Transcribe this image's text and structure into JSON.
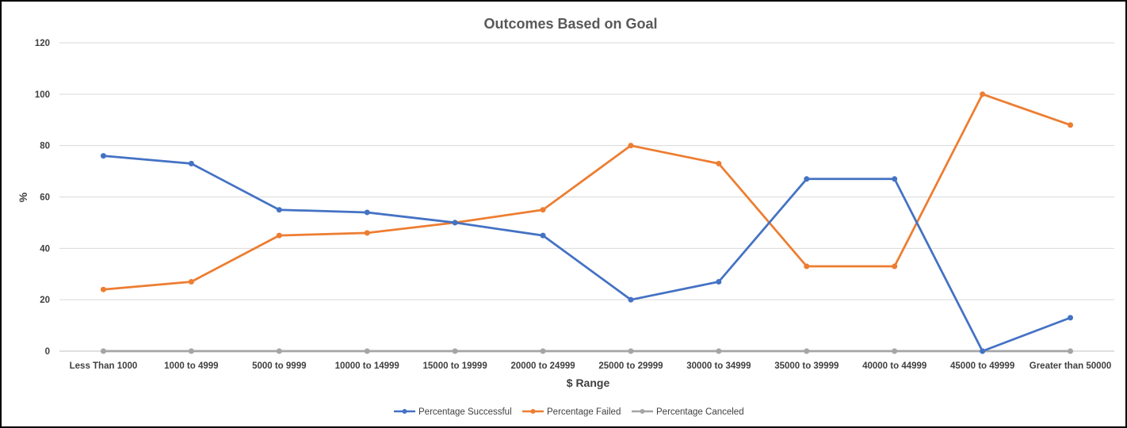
{
  "chart_data": {
    "type": "line",
    "title": "Outcomes Based on Goal",
    "xlabel": "$ Range",
    "ylabel": "%",
    "ylim": [
      0,
      120
    ],
    "yticks": [
      "0",
      "20",
      "40",
      "60",
      "80",
      "100",
      "120"
    ],
    "yticks_values": [
      0,
      20,
      40,
      60,
      80,
      100,
      120
    ],
    "grid": true,
    "legend_position": "bottom",
    "categories": [
      "Less Than 1000",
      "1000 to 4999",
      "5000 to 9999",
      "10000 to 14999",
      "15000 to 19999",
      "20000 to 24999",
      "25000 to 29999",
      "30000 to 34999",
      "35000 to 39999",
      "40000 to 44999",
      "45000 to 49999",
      "Greater than 50000"
    ],
    "series": [
      {
        "name": "Percentage Successful",
        "color": "#4472C4",
        "values": [
          76,
          73,
          55,
          54,
          50,
          45,
          20,
          27,
          67,
          67,
          0,
          13
        ]
      },
      {
        "name": "Percentage Failed",
        "color": "#ED7D31",
        "values": [
          24,
          27,
          45,
          46,
          50,
          55,
          80,
          73,
          33,
          33,
          100,
          88
        ]
      },
      {
        "name": "Percentage Canceled",
        "color": "#A5A5A5",
        "values": [
          0,
          0,
          0,
          0,
          0,
          0,
          0,
          0,
          0,
          0,
          0,
          0
        ]
      }
    ]
  }
}
